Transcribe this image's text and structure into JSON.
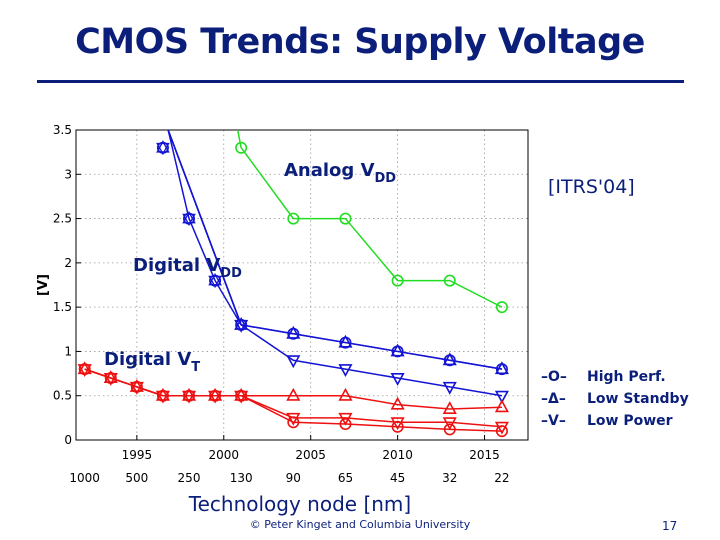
{
  "slide": {
    "title": "CMOS Trends: Supply Voltage",
    "source": "[ITRS'04]",
    "footer": "© Peter Kinget and Columbia University",
    "page_number": "17",
    "legend": [
      {
        "marker": "–O–",
        "label": "High Perf."
      },
      {
        "marker": "–Δ–",
        "label": "Low Standby"
      },
      {
        "marker": "–V–",
        "label": "Low Power"
      }
    ]
  },
  "colors": {
    "title": "#0b1f7a",
    "digital": "#1414d4",
    "analog": "#22dd22",
    "vt": "#ee1111"
  },
  "chart_data": {
    "type": "line",
    "xlabel": "Technology node [nm]",
    "ylabel": "[V]",
    "ylim": [
      0,
      3.5
    ],
    "y_ticks": [
      "0",
      "0.5",
      "1",
      "1.5",
      "2",
      "2.5",
      "3",
      "3.5"
    ],
    "node_ticks": [
      "1000",
      "500",
      "250",
      "130",
      "90",
      "65",
      "45",
      "32",
      "22"
    ],
    "year_ticks": [
      "1995",
      "2000",
      "2005",
      "2010",
      "2015"
    ],
    "grid": true,
    "annotations": [
      {
        "text": "Analog V",
        "sub": "DD",
        "color": "#0b1f7a"
      },
      {
        "text": "Digital V",
        "sub": "DD",
        "color": "#0b1f7a"
      },
      {
        "text": "Digital V",
        "sub": "T",
        "color": "#0b1f7a"
      }
    ],
    "x": [
      1992,
      1993.5,
      1995,
      1996.5,
      1998,
      1999.5,
      2001,
      2004,
      2007,
      2010,
      2013,
      2016
    ],
    "series": [
      {
        "group": "digital-vdd",
        "marker": "circle",
        "color": "#1414d4",
        "x": [
          1996.8,
          2001,
          2004,
          2007,
          2010,
          2013,
          2016
        ],
        "values": [
          3.5,
          1.3,
          1.2,
          1.1,
          1.0,
          0.9,
          0.8
        ]
      },
      {
        "group": "digital-vdd",
        "marker": "up",
        "color": "#1414d4",
        "x": [
          1996.8,
          2001,
          2004,
          2007,
          2010,
          2013,
          2016
        ],
        "values": [
          3.5,
          1.3,
          1.2,
          1.1,
          1.0,
          0.9,
          0.8
        ]
      },
      {
        "group": "digital-vdd",
        "marker": "down",
        "color": "#1414d4",
        "x": [
          1996.8,
          2001,
          2004,
          2007,
          2010,
          2013,
          2016
        ],
        "values": [
          3.5,
          1.3,
          0.9,
          0.8,
          0.7,
          0.6,
          0.5
        ]
      },
      {
        "group": "digital-vdd-early",
        "marker": "hex",
        "color": "#1414d4",
        "x": [
          1996.8,
          1998,
          1999.5,
          2001
        ],
        "values": [
          3.5,
          2.5,
          1.8,
          1.3
        ],
        "shown_x": [
          1996.5,
          1998,
          1999.5
        ],
        "shown_values": [
          3.3,
          2.5,
          1.8
        ]
      },
      {
        "group": "analog-vdd",
        "marker": "circle",
        "color": "#22dd22",
        "x": [
          2000.8,
          2001,
          2004,
          2007,
          2010,
          2013,
          2016
        ],
        "values": [
          3.5,
          3.3,
          2.5,
          2.5,
          1.8,
          1.8,
          1.5
        ]
      },
      {
        "group": "digital-vt",
        "marker": "circle",
        "color": "#ee1111",
        "x": [
          1992,
          1993.5,
          1995,
          1996.5,
          1998,
          1999.5,
          2001,
          2004,
          2007,
          2010,
          2013,
          2016
        ],
        "values": [
          0.8,
          0.7,
          0.6,
          0.5,
          0.5,
          0.5,
          0.5,
          0.2,
          0.18,
          0.15,
          0.12,
          0.1
        ]
      },
      {
        "group": "digital-vt",
        "marker": "up",
        "color": "#ee1111",
        "x": [
          1992,
          1993.5,
          1995,
          1996.5,
          1998,
          1999.5,
          2001,
          2004,
          2007,
          2010,
          2013,
          2016
        ],
        "values": [
          0.8,
          0.7,
          0.6,
          0.5,
          0.5,
          0.5,
          0.5,
          0.5,
          0.5,
          0.4,
          0.35,
          0.37
        ]
      },
      {
        "group": "digital-vt",
        "marker": "down",
        "color": "#ee1111",
        "x": [
          1992,
          1993.5,
          1995,
          1996.5,
          1998,
          1999.5,
          2001,
          2004,
          2007,
          2010,
          2013,
          2016
        ],
        "values": [
          0.8,
          0.7,
          0.6,
          0.5,
          0.5,
          0.5,
          0.5,
          0.25,
          0.25,
          0.2,
          0.2,
          0.15
        ]
      }
    ]
  }
}
